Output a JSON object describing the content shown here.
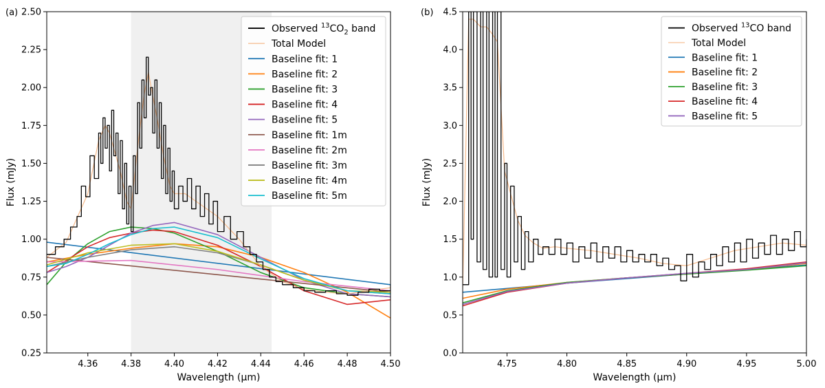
{
  "chart_data": [
    {
      "type": "line",
      "panel_label": "(a)",
      "xlabel": "Wavelength (μm)",
      "ylabel": "Flux (mJy)",
      "xlim": [
        4.341,
        4.5
      ],
      "ylim": [
        0.25,
        2.5
      ],
      "xticks": [
        "4.36",
        "4.38",
        "4.40",
        "4.42",
        "4.44",
        "4.46",
        "4.48",
        "4.50"
      ],
      "xtick_values": [
        4.36,
        4.38,
        4.4,
        4.42,
        4.44,
        4.46,
        4.48,
        4.5
      ],
      "yticks": [
        "0.25",
        "0.50",
        "0.75",
        "1.00",
        "1.25",
        "1.50",
        "1.75",
        "2.00",
        "2.25",
        "2.50"
      ],
      "ytick_values": [
        0.25,
        0.5,
        0.75,
        1.0,
        1.25,
        1.5,
        1.75,
        2.0,
        2.25,
        2.5
      ],
      "shaded_region": [
        4.38,
        4.445
      ],
      "legend_position": "top-right",
      "legend": [
        {
          "text": "Observed ",
          "sup": "13",
          "after": "CO",
          "sub": "2",
          "tail": " band",
          "color": "#000000"
        },
        {
          "text": "Total Model",
          "color": "#f5b98a"
        },
        {
          "text": "Baseline fit: 1",
          "color": "#1f77b4"
        },
        {
          "text": "Baseline fit: 2",
          "color": "#ff7f0e"
        },
        {
          "text": "Baseline fit: 3",
          "color": "#2ca02c"
        },
        {
          "text": "Baseline fit: 4",
          "color": "#d62728"
        },
        {
          "text": "Baseline fit: 5",
          "color": "#9467bd"
        },
        {
          "text": "Baseline fit: 1m",
          "color": "#8c564b"
        },
        {
          "text": "Baseline fit: 2m",
          "color": "#e377c2"
        },
        {
          "text": "Baseline fit: 3m",
          "color": "#7f7f7f"
        },
        {
          "text": "Baseline fit: 4m",
          "color": "#bcbd22"
        },
        {
          "text": "Baseline fit: 5m",
          "color": "#17becf"
        }
      ],
      "observed": {
        "x": [
          4.341,
          4.345,
          4.349,
          4.352,
          4.355,
          4.357,
          4.359,
          4.361,
          4.363,
          4.365,
          4.366,
          4.367,
          4.368,
          4.369,
          4.37,
          4.371,
          4.372,
          4.373,
          4.374,
          4.375,
          4.376,
          4.377,
          4.378,
          4.379,
          4.38,
          4.381,
          4.382,
          4.383,
          4.384,
          4.385,
          4.386,
          4.387,
          4.388,
          4.389,
          4.39,
          4.391,
          4.392,
          4.393,
          4.394,
          4.395,
          4.396,
          4.397,
          4.398,
          4.399,
          4.4,
          4.402,
          4.404,
          4.406,
          4.408,
          4.41,
          4.412,
          4.414,
          4.416,
          4.418,
          4.42,
          4.423,
          4.426,
          4.429,
          4.432,
          4.435,
          4.438,
          4.441,
          4.444,
          4.447,
          4.45,
          4.455,
          4.46,
          4.465,
          4.47,
          4.475,
          4.48,
          4.485,
          4.49,
          4.495,
          4.5
        ],
        "y": [
          0.9,
          0.95,
          1.0,
          1.08,
          1.15,
          1.35,
          1.28,
          1.55,
          1.4,
          1.7,
          1.5,
          1.8,
          1.6,
          1.75,
          1.45,
          1.85,
          1.55,
          1.7,
          1.3,
          1.65,
          1.2,
          1.5,
          1.1,
          1.35,
          1.05,
          1.55,
          1.3,
          1.9,
          1.6,
          2.05,
          1.8,
          2.2,
          1.95,
          2.0,
          1.7,
          2.05,
          1.6,
          1.9,
          1.4,
          1.75,
          1.3,
          1.6,
          1.25,
          1.45,
          1.2,
          1.35,
          1.25,
          1.4,
          1.2,
          1.35,
          1.15,
          1.3,
          1.1,
          1.25,
          1.05,
          1.15,
          1.0,
          1.05,
          0.95,
          0.9,
          0.85,
          0.8,
          0.75,
          0.72,
          0.7,
          0.68,
          0.66,
          0.65,
          0.66,
          0.64,
          0.63,
          0.65,
          0.67,
          0.66,
          0.7
        ]
      },
      "total_model": {
        "x": [
          4.341,
          4.35,
          4.36,
          4.365,
          4.368,
          4.37,
          4.372,
          4.375,
          4.378,
          4.38,
          4.383,
          4.386,
          4.388,
          4.39,
          4.392,
          4.395,
          4.398,
          4.4,
          4.405,
          4.41,
          4.415,
          4.42,
          4.43,
          4.44,
          4.45,
          4.46,
          4.47,
          4.48,
          4.49,
          4.5
        ],
        "y": [
          0.88,
          0.98,
          1.3,
          1.65,
          1.75,
          1.7,
          1.6,
          1.45,
          1.25,
          1.2,
          1.6,
          1.95,
          2.1,
          1.95,
          1.8,
          1.55,
          1.35,
          1.3,
          1.3,
          1.25,
          1.2,
          1.15,
          1.0,
          0.82,
          0.72,
          0.67,
          0.65,
          0.64,
          0.66,
          0.68
        ]
      },
      "baselines": [
        {
          "name": "Baseline fit: 1",
          "color": "#1f77b4",
          "x": [
            4.341,
            4.5
          ],
          "y": [
            0.98,
            0.7
          ]
        },
        {
          "name": "Baseline fit: 2",
          "color": "#ff7f0e",
          "x": [
            4.341,
            4.36,
            4.38,
            4.4,
            4.42,
            4.44,
            4.46,
            4.48,
            4.5
          ],
          "y": [
            0.85,
            0.9,
            0.94,
            0.97,
            0.95,
            0.88,
            0.78,
            0.65,
            0.48
          ]
        },
        {
          "name": "Baseline fit: 3",
          "color": "#2ca02c",
          "x": [
            4.341,
            4.35,
            4.36,
            4.37,
            4.38,
            4.39,
            4.4,
            4.42,
            4.44,
            4.46,
            4.48,
            4.5
          ],
          "y": [
            0.7,
            0.85,
            0.97,
            1.05,
            1.08,
            1.07,
            1.04,
            0.92,
            0.78,
            0.68,
            0.64,
            0.62
          ]
        },
        {
          "name": "Baseline fit: 4",
          "color": "#d62728",
          "x": [
            4.341,
            4.35,
            4.36,
            4.37,
            4.38,
            4.39,
            4.4,
            4.42,
            4.44,
            4.46,
            4.48,
            4.5
          ],
          "y": [
            0.78,
            0.86,
            0.95,
            1.01,
            1.04,
            1.06,
            1.05,
            0.96,
            0.82,
            0.66,
            0.57,
            0.6
          ]
        },
        {
          "name": "Baseline fit: 5",
          "color": "#9467bd",
          "x": [
            4.341,
            4.35,
            4.36,
            4.37,
            4.38,
            4.39,
            4.4,
            4.42,
            4.44,
            4.46,
            4.48,
            4.5
          ],
          "y": [
            0.78,
            0.82,
            0.88,
            0.96,
            1.04,
            1.09,
            1.11,
            1.03,
            0.88,
            0.73,
            0.64,
            0.62
          ]
        },
        {
          "name": "Baseline fit: 1m",
          "color": "#8c564b",
          "x": [
            4.341,
            4.5
          ],
          "y": [
            0.88,
            0.65
          ]
        },
        {
          "name": "Baseline fit: 2m",
          "color": "#e377c2",
          "x": [
            4.341,
            4.38,
            4.42,
            4.46,
            4.5
          ],
          "y": [
            0.85,
            0.86,
            0.8,
            0.72,
            0.66
          ]
        },
        {
          "name": "Baseline fit: 3m",
          "color": "#7f7f7f",
          "x": [
            4.341,
            4.36,
            4.38,
            4.4,
            4.42,
            4.44,
            4.46,
            4.48,
            4.5
          ],
          "y": [
            0.82,
            0.88,
            0.93,
            0.95,
            0.91,
            0.83,
            0.73,
            0.66,
            0.64
          ]
        },
        {
          "name": "Baseline fit: 4m",
          "color": "#bcbd22",
          "x": [
            4.341,
            4.36,
            4.38,
            4.4,
            4.42,
            4.44,
            4.46,
            4.48,
            4.5
          ],
          "y": [
            0.83,
            0.91,
            0.96,
            0.97,
            0.92,
            0.83,
            0.73,
            0.66,
            0.65
          ]
        },
        {
          "name": "Baseline fit: 5m",
          "color": "#17becf",
          "x": [
            4.341,
            4.35,
            4.36,
            4.37,
            4.38,
            4.39,
            4.4,
            4.42,
            4.44,
            4.46,
            4.48,
            4.5
          ],
          "y": [
            0.82,
            0.84,
            0.9,
            0.97,
            1.03,
            1.07,
            1.08,
            1.01,
            0.87,
            0.74,
            0.66,
            0.64
          ]
        }
      ]
    },
    {
      "type": "line",
      "panel_label": "(b)",
      "xlabel": "Wavelength (μm)",
      "ylabel": "Flux (mJy)",
      "xlim": [
        4.713,
        5.0
      ],
      "ylim": [
        0.0,
        4.5
      ],
      "xticks": [
        "4.75",
        "4.80",
        "4.85",
        "4.90",
        "4.95",
        "5.00"
      ],
      "xtick_values": [
        4.75,
        4.8,
        4.85,
        4.9,
        4.95,
        5.0
      ],
      "yticks": [
        "0.0",
        "0.5",
        "1.0",
        "1.5",
        "2.0",
        "2.5",
        "3.0",
        "3.5",
        "4.0",
        "4.5"
      ],
      "ytick_values": [
        0.0,
        0.5,
        1.0,
        1.5,
        2.0,
        2.5,
        3.0,
        3.5,
        4.0,
        4.5
      ],
      "legend_position": "top-right",
      "legend": [
        {
          "text": "Observed ",
          "sup": "13",
          "after": "CO band",
          "sub": "",
          "tail": "",
          "color": "#000000"
        },
        {
          "text": "Total Model",
          "color": "#f5b98a"
        },
        {
          "text": "Baseline fit: 1",
          "color": "#1f77b4"
        },
        {
          "text": "Baseline fit: 2",
          "color": "#ff7f0e"
        },
        {
          "text": "Baseline fit: 3",
          "color": "#2ca02c"
        },
        {
          "text": "Baseline fit: 4",
          "color": "#d62728"
        },
        {
          "text": "Baseline fit: 5",
          "color": "#9467bd"
        }
      ],
      "observed": {
        "x": [
          4.713,
          4.718,
          4.72,
          4.722,
          4.725,
          4.728,
          4.73,
          4.733,
          4.735,
          4.738,
          4.74,
          4.742,
          4.745,
          4.748,
          4.75,
          4.753,
          4.756,
          4.759,
          4.762,
          4.765,
          4.768,
          4.772,
          4.776,
          4.78,
          4.785,
          4.79,
          4.795,
          4.8,
          4.805,
          4.81,
          4.815,
          4.82,
          4.825,
          4.83,
          4.835,
          4.84,
          4.845,
          4.85,
          4.855,
          4.86,
          4.865,
          4.87,
          4.875,
          4.88,
          4.885,
          4.89,
          4.895,
          4.9,
          4.905,
          4.91,
          4.915,
          4.92,
          4.925,
          4.93,
          4.935,
          4.94,
          4.945,
          4.95,
          4.955,
          4.96,
          4.965,
          4.97,
          4.975,
          4.98,
          4.985,
          4.99,
          4.995,
          5.0
        ],
        "y": [
          0.9,
          4.5,
          1.5,
          4.5,
          1.2,
          4.5,
          1.1,
          4.5,
          1.0,
          4.5,
          1.0,
          4.5,
          1.1,
          2.5,
          1.0,
          2.2,
          1.2,
          1.8,
          1.1,
          1.6,
          1.2,
          1.5,
          1.3,
          1.4,
          1.3,
          1.5,
          1.3,
          1.45,
          1.2,
          1.4,
          1.25,
          1.45,
          1.2,
          1.4,
          1.25,
          1.4,
          1.2,
          1.35,
          1.2,
          1.3,
          1.2,
          1.3,
          1.15,
          1.25,
          1.1,
          1.15,
          0.95,
          1.3,
          1.0,
          1.2,
          1.1,
          1.3,
          1.15,
          1.4,
          1.2,
          1.45,
          1.2,
          1.5,
          1.25,
          1.45,
          1.3,
          1.55,
          1.3,
          1.5,
          1.35,
          1.6,
          1.4,
          1.5
        ]
      },
      "total_model": {
        "x": [
          4.713,
          4.718,
          4.722,
          4.728,
          4.733,
          4.738,
          4.742,
          4.748,
          4.753,
          4.759,
          4.765,
          4.772,
          4.78,
          4.79,
          4.8,
          4.82,
          4.84,
          4.86,
          4.88,
          4.9,
          4.92,
          4.94,
          4.96,
          4.98,
          5.0
        ],
        "y": [
          0.85,
          4.4,
          4.4,
          4.3,
          4.3,
          4.2,
          4.1,
          2.4,
          2.1,
          1.75,
          1.55,
          1.45,
          1.38,
          1.4,
          1.38,
          1.35,
          1.3,
          1.25,
          1.18,
          1.15,
          1.25,
          1.35,
          1.4,
          1.45,
          1.42
        ]
      },
      "baselines": [
        {
          "name": "Baseline fit: 1",
          "color": "#1f77b4",
          "x": [
            4.713,
            4.75,
            4.8,
            4.85,
            4.9,
            4.95,
            5.0
          ],
          "y": [
            0.8,
            0.85,
            0.92,
            0.98,
            1.04,
            1.1,
            1.16
          ]
        },
        {
          "name": "Baseline fit: 2",
          "color": "#ff7f0e",
          "x": [
            4.713,
            4.75,
            4.8,
            4.85,
            4.9,
            4.95,
            5.0
          ],
          "y": [
            0.72,
            0.84,
            0.93,
            0.99,
            1.04,
            1.1,
            1.18
          ]
        },
        {
          "name": "Baseline fit: 3",
          "color": "#2ca02c",
          "x": [
            4.713,
            4.75,
            4.8,
            4.85,
            4.9,
            4.95,
            5.0
          ],
          "y": [
            0.66,
            0.82,
            0.93,
            0.99,
            1.04,
            1.09,
            1.15
          ]
        },
        {
          "name": "Baseline fit: 4",
          "color": "#d62728",
          "x": [
            4.713,
            4.75,
            4.8,
            4.85,
            4.9,
            4.95,
            5.0
          ],
          "y": [
            0.62,
            0.8,
            0.92,
            0.99,
            1.05,
            1.11,
            1.2
          ]
        },
        {
          "name": "Baseline fit: 5",
          "color": "#9467bd",
          "x": [
            4.713,
            4.75,
            4.8,
            4.85,
            4.9,
            4.95,
            5.0
          ],
          "y": [
            0.64,
            0.81,
            0.92,
            0.99,
            1.05,
            1.1,
            1.19
          ]
        }
      ]
    }
  ]
}
